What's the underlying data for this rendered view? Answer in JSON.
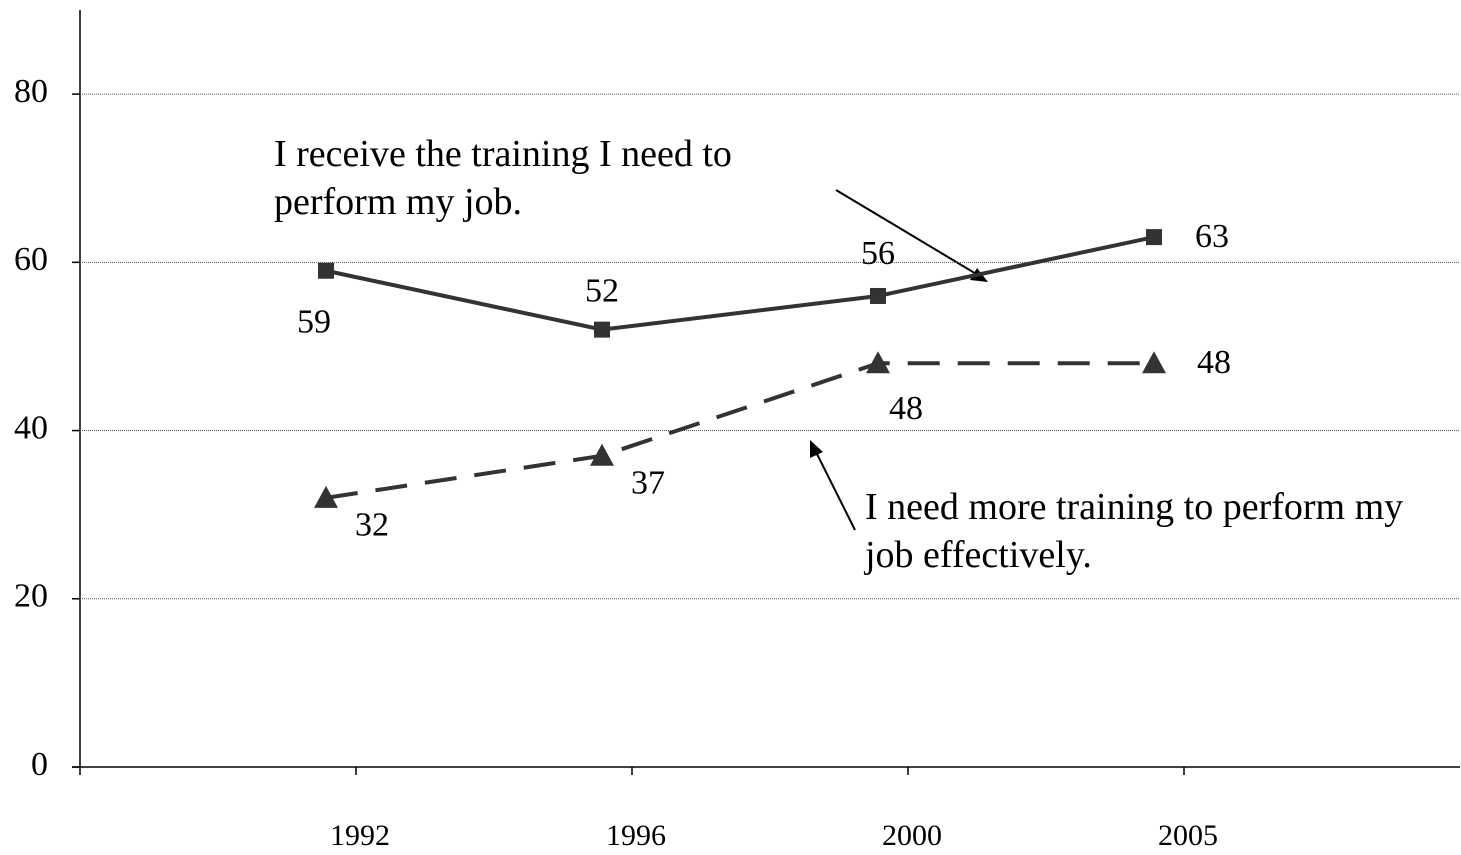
{
  "chart_data": {
    "type": "line",
    "categories": [
      "1992",
      "1996",
      "2000",
      "2005"
    ],
    "series": [
      {
        "name": "I receive the training I need to perform my job.",
        "color": "#333333",
        "marker": "square",
        "dash": false,
        "values": [
          59,
          52,
          56,
          63
        ]
      },
      {
        "name": "I need more training to perform my job effectively.",
        "color": "#333333",
        "marker": "triangle",
        "dash": true,
        "values": [
          32,
          37,
          48,
          48
        ]
      }
    ],
    "ylim": [
      0,
      90
    ],
    "yticks": [
      0,
      20,
      40,
      60,
      80
    ],
    "grid": true
  }
}
